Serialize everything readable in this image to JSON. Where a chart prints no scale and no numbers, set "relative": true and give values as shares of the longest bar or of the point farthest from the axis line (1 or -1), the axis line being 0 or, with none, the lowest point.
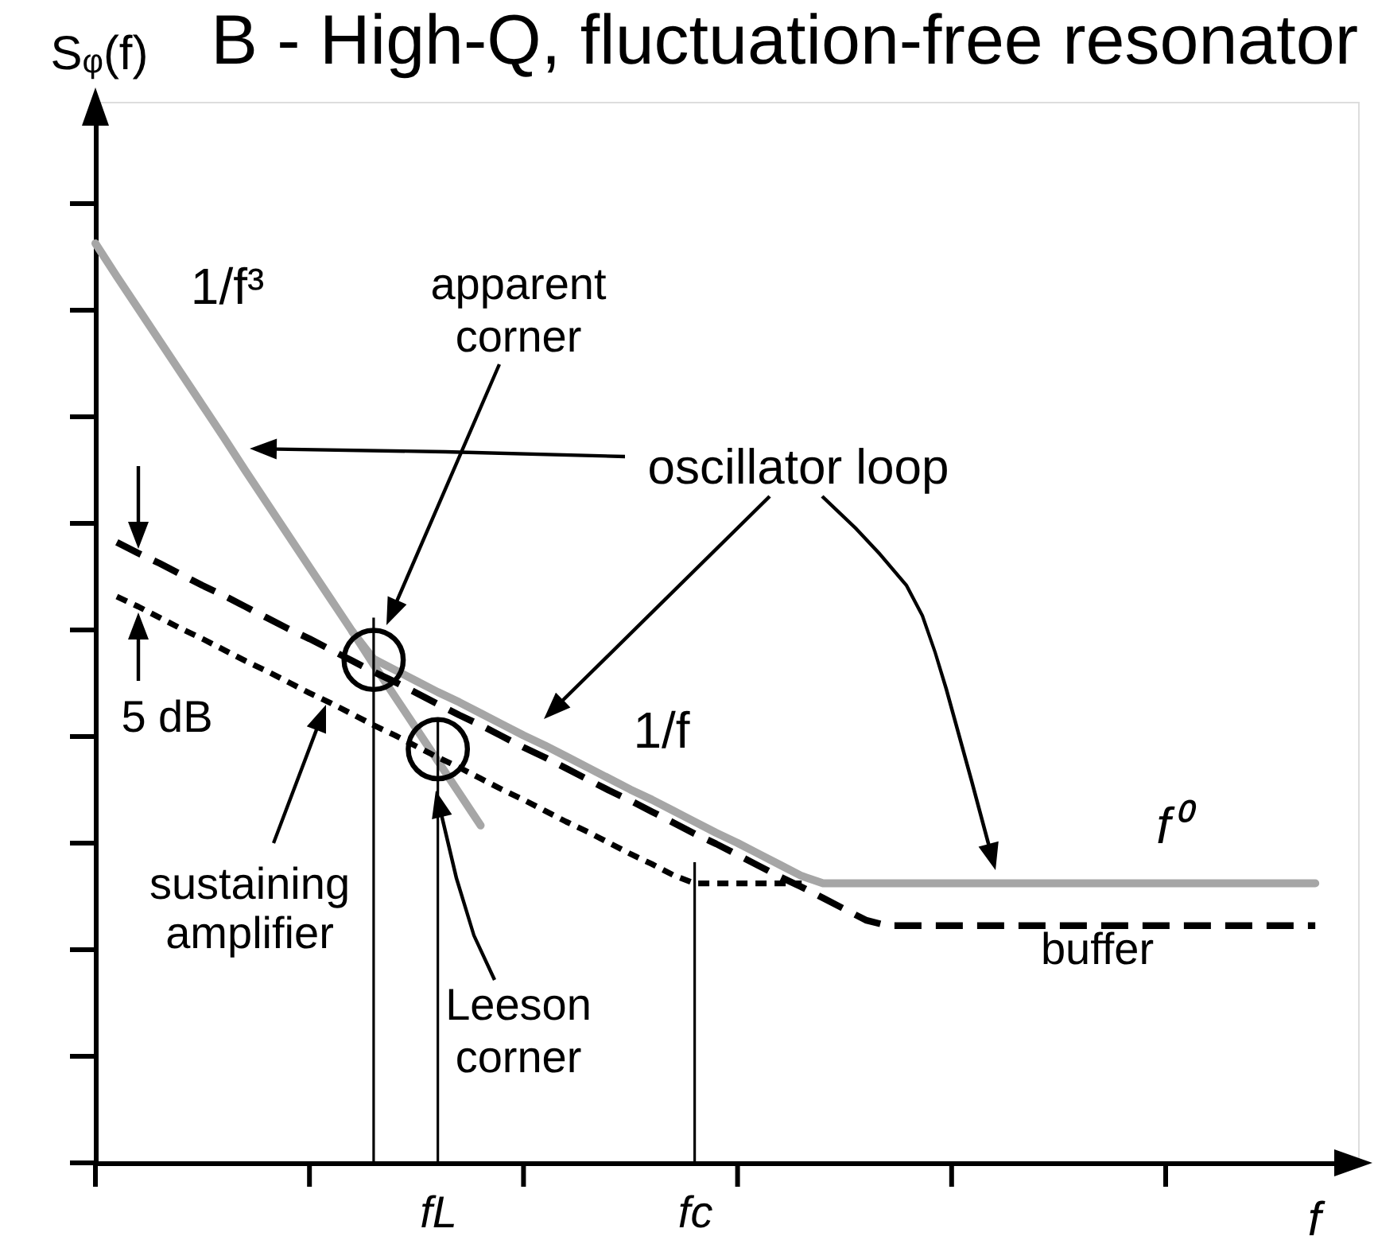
{
  "chart_data": {
    "type": "line",
    "title": "B - High-Q,  fluctuation-free resonator",
    "xlabel": "f",
    "ylabel": "Sᵩ(f)",
    "relative": true,
    "categories": [
      null,
      null,
      null,
      null,
      null,
      null,
      null,
      null,
      null,
      null,
      null,
      null,
      null,
      null,
      null,
      null,
      "fL",
      null,
      null,
      null,
      null,
      null,
      null,
      null,
      null,
      null,
      null,
      null,
      "fc",
      null,
      null,
      null,
      null,
      null,
      null,
      null,
      null,
      null,
      null,
      null,
      null,
      null,
      null,
      null,
      null,
      null,
      null,
      null,
      null,
      null,
      null,
      null,
      null,
      null,
      null,
      null,
      null,
      null,
      null,
      null
    ],
    "series": [
      {
        "color": "#a6a6a6",
        "values": [
          1,
          0.964,
          0.929,
          0.894,
          0.859,
          0.824,
          0.789,
          0.753,
          0.718,
          0.683,
          0.648,
          0.613,
          0.578,
          0.548,
          0.536,
          0.524,
          0.512,
          0.501,
          0.489,
          0.477,
          0.465,
          0.454,
          0.442,
          0.43,
          0.418,
          0.406,
          0.395,
          0.383,
          0.371,
          0.359,
          0.348,
          0.336,
          0.324,
          0.312,
          0.304,
          0.304,
          0.304,
          0.304,
          0.304,
          0.304,
          0.304,
          0.304,
          0.304,
          0.304,
          0.304,
          0.304,
          0.304,
          0.304,
          0.304,
          0.304,
          0.304,
          0.304,
          0.304,
          0.304,
          0.304,
          0.304,
          0.304,
          0.304,
          null,
          null
        ]
      },
      {
        "color": "#a6a6a6",
        "values": [
          null,
          null,
          null,
          null,
          null,
          null,
          null,
          null,
          null,
          null,
          null,
          null,
          0.578,
          0.542,
          0.507,
          0.472,
          0.437,
          0.402,
          0.367,
          null,
          null,
          null,
          null,
          null,
          null,
          null,
          null,
          null,
          null,
          null,
          null,
          null,
          null,
          null,
          null,
          null,
          null,
          null,
          null,
          null,
          null,
          null,
          null,
          null,
          null,
          null,
          null,
          null,
          null,
          null,
          null,
          null,
          null,
          null,
          null,
          null,
          null,
          null,
          null,
          null
        ]
      },
      {
        "name": "buffer",
        "color": "#000000",
        "line_style": "dashed",
        "values": [
          null,
          0.675,
          0.663,
          0.652,
          0.64,
          0.628,
          0.617,
          0.605,
          0.593,
          0.581,
          0.57,
          0.558,
          0.546,
          0.534,
          0.523,
          0.511,
          0.499,
          0.487,
          0.476,
          0.464,
          0.452,
          0.441,
          0.429,
          0.417,
          0.405,
          0.394,
          0.382,
          0.37,
          0.358,
          0.347,
          0.335,
          0.323,
          0.311,
          0.3,
          0.288,
          0.276,
          0.264,
          0.258,
          0.258,
          0.258,
          0.258,
          0.258,
          0.258,
          0.258,
          0.258,
          0.258,
          0.258,
          0.258,
          0.258,
          0.258,
          0.258,
          0.258,
          0.258,
          0.258,
          0.258,
          0.258,
          0.258,
          0.258,
          null,
          null
        ]
      },
      {
        "name": "sustaining amplifier",
        "color": "#000000",
        "line_style": "dotted",
        "values": [
          null,
          0.616,
          0.605,
          0.593,
          0.581,
          0.57,
          0.558,
          0.546,
          0.535,
          0.523,
          0.511,
          0.5,
          0.488,
          0.476,
          0.465,
          0.453,
          0.441,
          0.43,
          0.418,
          0.406,
          0.395,
          0.383,
          0.371,
          0.36,
          0.348,
          0.336,
          0.325,
          0.313,
          0.304,
          0.304,
          0.304,
          0.304,
          0.304,
          0.304,
          null,
          null,
          null,
          null,
          null,
          null,
          null,
          null,
          null,
          null,
          null,
          null,
          null,
          null,
          null,
          null,
          null,
          null,
          null,
          null,
          null,
          null,
          null,
          null,
          null,
          null
        ]
      },
      {
        "type": "bar",
        "color": "#000000",
        "values": [
          null,
          null,
          null,
          null,
          null,
          null,
          null,
          null,
          null,
          null,
          null,
          null,
          null,
          0.593,
          null,
          null,
          0.481,
          null,
          null,
          null,
          null,
          null,
          null,
          null,
          null,
          null,
          null,
          null,
          0.327,
          null,
          null,
          null,
          null,
          null,
          null,
          null,
          null,
          null,
          null,
          null,
          null,
          null,
          null,
          null,
          null,
          null,
          null,
          null,
          null,
          null,
          null,
          null,
          null,
          null,
          null,
          null,
          null,
          null,
          null,
          null
        ]
      },
      {
        "type": "scatter",
        "marker": "circle",
        "color": "#000000",
        "values": [
          null,
          null,
          null,
          null,
          null,
          null,
          null,
          null,
          null,
          null,
          null,
          null,
          null,
          0.547,
          null,
          null,
          0.45,
          null,
          null,
          null,
          null,
          null,
          null,
          null,
          null,
          null,
          null,
          null,
          null,
          null,
          null,
          null,
          null,
          null,
          null,
          null,
          null,
          null,
          null,
          null,
          null,
          null,
          null,
          null,
          null,
          null,
          null,
          null,
          null,
          null,
          null,
          null,
          null,
          null,
          null,
          null,
          null,
          null,
          null,
          null
        ]
      }
    ],
    "annotations": [
      "1/f³",
      "apparent corner",
      "oscillator loop",
      "1/f",
      "f⁰",
      "5 dB",
      "Leeson corner"
    ]
  }
}
